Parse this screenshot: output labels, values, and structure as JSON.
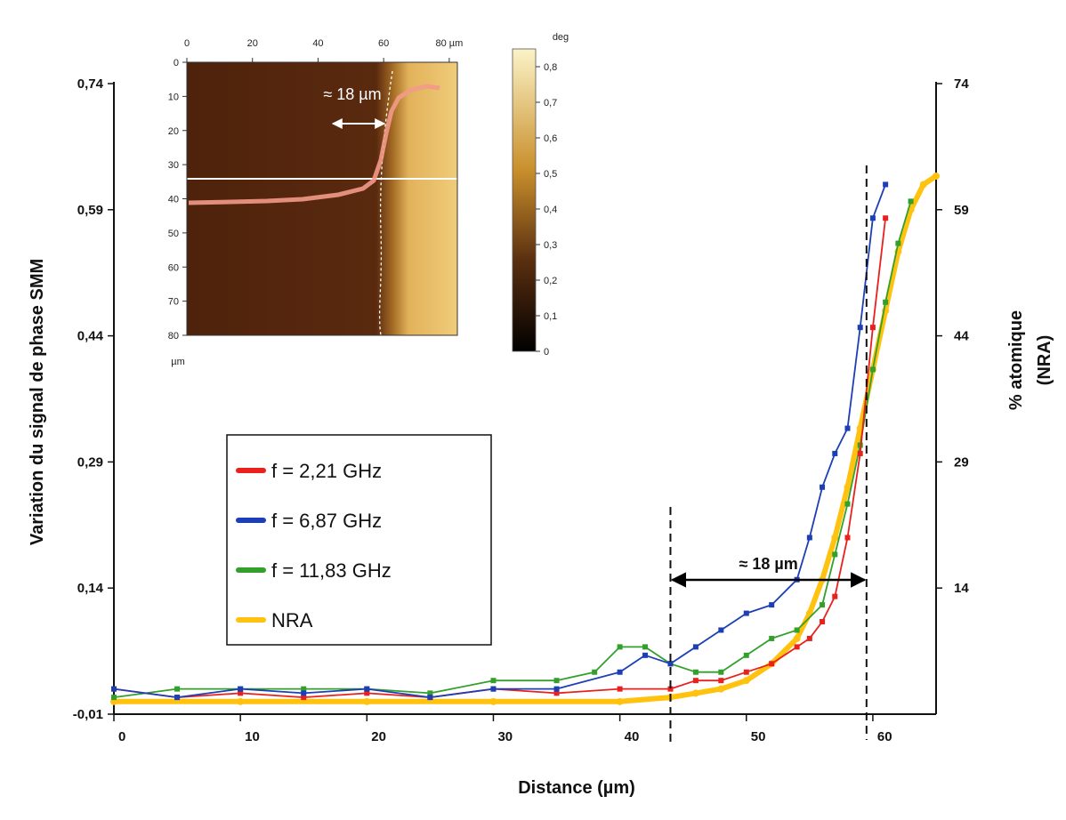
{
  "chart_data": {
    "type": "line",
    "xlabel": "Distance (µm)",
    "ylabel_left": "Variation du signal de phase SMM",
    "ylabel_right_line1": "% atomique",
    "ylabel_right_line2": "(NRA)",
    "xlim": [
      0,
      65
    ],
    "ylim_left": [
      -0.01,
      0.74
    ],
    "ylim_right": [
      -1,
      74
    ],
    "x_ticks": [
      "0",
      "10",
      "20",
      "30",
      "40",
      "50",
      "60"
    ],
    "y_left_ticks": [
      "0,74",
      "0,59",
      "0,44",
      "0,29",
      "0,14",
      "-0,01"
    ],
    "y_right_ticks": [
      "74",
      "59",
      "44",
      "29",
      "14"
    ],
    "annotation": "≈ 18 µm",
    "annotation_range": [
      44,
      59.5
    ],
    "series": [
      {
        "name": "f = 2,21 GHz",
        "color": "#e8211d",
        "x": [
          0,
          5,
          10,
          15,
          20,
          25,
          30,
          35,
          40,
          44,
          46,
          48,
          50,
          52,
          54,
          55,
          56,
          57,
          58,
          59,
          60,
          61
        ],
        "y": [
          0.02,
          0.01,
          0.015,
          0.01,
          0.015,
          0.01,
          0.02,
          0.015,
          0.02,
          0.02,
          0.03,
          0.03,
          0.04,
          0.05,
          0.07,
          0.08,
          0.1,
          0.13,
          0.2,
          0.3,
          0.45,
          0.58
        ]
      },
      {
        "name": "f = 6,87 GHz",
        "color": "#1d3fb5",
        "x": [
          0,
          5,
          10,
          15,
          20,
          25,
          30,
          35,
          40,
          42,
          44,
          46,
          48,
          50,
          52,
          54,
          55,
          56,
          57,
          58,
          59,
          60,
          61
        ],
        "y": [
          0.02,
          0.01,
          0.02,
          0.015,
          0.02,
          0.01,
          0.02,
          0.02,
          0.04,
          0.06,
          0.05,
          0.07,
          0.09,
          0.11,
          0.12,
          0.15,
          0.2,
          0.26,
          0.3,
          0.33,
          0.45,
          0.58,
          0.62
        ]
      },
      {
        "name": "f = 11,83 GHz",
        "color": "#33a02c",
        "x": [
          0,
          5,
          10,
          15,
          20,
          25,
          30,
          35,
          38,
          40,
          42,
          44,
          46,
          48,
          50,
          52,
          54,
          56,
          57,
          58,
          59,
          60,
          61,
          62,
          63
        ],
        "y": [
          0.01,
          0.02,
          0.02,
          0.02,
          0.02,
          0.015,
          0.03,
          0.03,
          0.04,
          0.07,
          0.07,
          0.05,
          0.04,
          0.04,
          0.06,
          0.08,
          0.09,
          0.12,
          0.18,
          0.24,
          0.31,
          0.4,
          0.48,
          0.55,
          0.6
        ]
      },
      {
        "name": "NRA",
        "color": "#ffc20e",
        "x": [
          0,
          10,
          20,
          30,
          40,
          44,
          46,
          48,
          50,
          52,
          54,
          55,
          56,
          57,
          58,
          59,
          60,
          61,
          62,
          63,
          64,
          65
        ],
        "y": [
          0.005,
          0.005,
          0.005,
          0.005,
          0.005,
          0.01,
          0.015,
          0.02,
          0.03,
          0.05,
          0.08,
          0.11,
          0.15,
          0.2,
          0.26,
          0.33,
          0.4,
          0.47,
          0.54,
          0.59,
          0.62,
          0.63
        ]
      }
    ],
    "inset": {
      "type": "heatmap",
      "x_ticks": [
        "0",
        "20",
        "40",
        "60",
        "80 µm"
      ],
      "y_ticks": [
        "0",
        "10",
        "20",
        "30",
        "40",
        "50",
        "60",
        "70",
        "80"
      ],
      "y_unit": "µm",
      "colorbar_label": "deg",
      "colorbar_ticks": [
        "0,8",
        "0,7",
        "0,6",
        "0,5",
        "0,4",
        "0,3",
        "0,2",
        "0,1",
        "0"
      ],
      "annotation": "≈ 18 µm"
    }
  }
}
